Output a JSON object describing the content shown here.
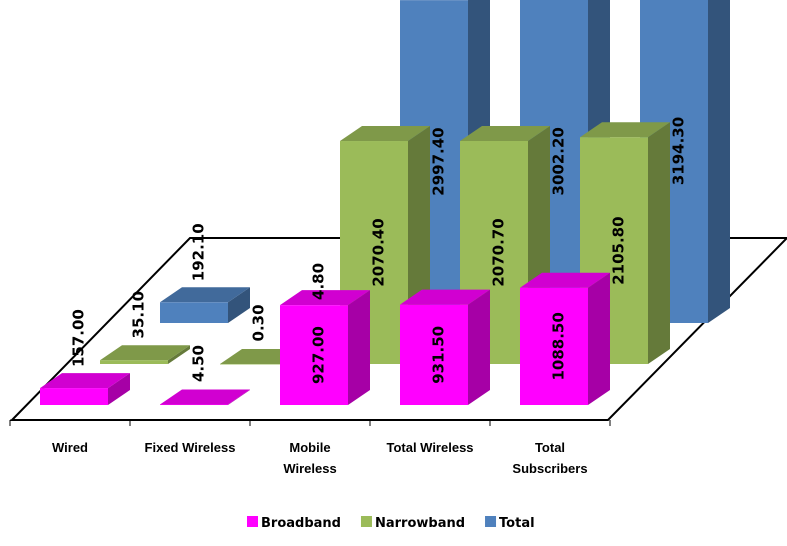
{
  "chart_data": {
    "type": "bar",
    "title": "",
    "xlabel": "",
    "ylabel": "",
    "categories": [
      "Wired",
      "Fixed Wireless",
      "Mobile Wireless",
      "Total Wireless",
      "Total Subscribers"
    ],
    "category_lines": [
      [
        "Wired"
      ],
      [
        "Fixed Wireless"
      ],
      [
        "Mobile",
        "Wireless"
      ],
      [
        "Total Wireless"
      ],
      [
        "Total",
        "Subscribers"
      ]
    ],
    "series": [
      {
        "name": "Broadband",
        "color": "#ff00ff",
        "values": [
          157.0,
          4.5,
          927.0,
          931.5,
          1088.5
        ],
        "labels": [
          "157.00",
          "4.50",
          "927.00",
          "931.50",
          "1088.50"
        ]
      },
      {
        "name": "Narrowband",
        "color": "#9bbb59",
        "values": [
          35.1,
          0.3,
          2070.4,
          2070.7,
          2105.8
        ],
        "labels": [
          "35.10",
          "0.30",
          "2070.40",
          "2070.70",
          "2105.80"
        ]
      },
      {
        "name": "Total",
        "color": "#4f81bd",
        "values": [
          192.1,
          4.8,
          2997.4,
          3002.2,
          3194.3
        ],
        "labels": [
          "192.10",
          "4.80",
          "2997.40",
          "3002.20",
          "3194.30"
        ]
      }
    ],
    "legend_position": "bottom",
    "grid": false,
    "style": "3d-clustered-column"
  }
}
